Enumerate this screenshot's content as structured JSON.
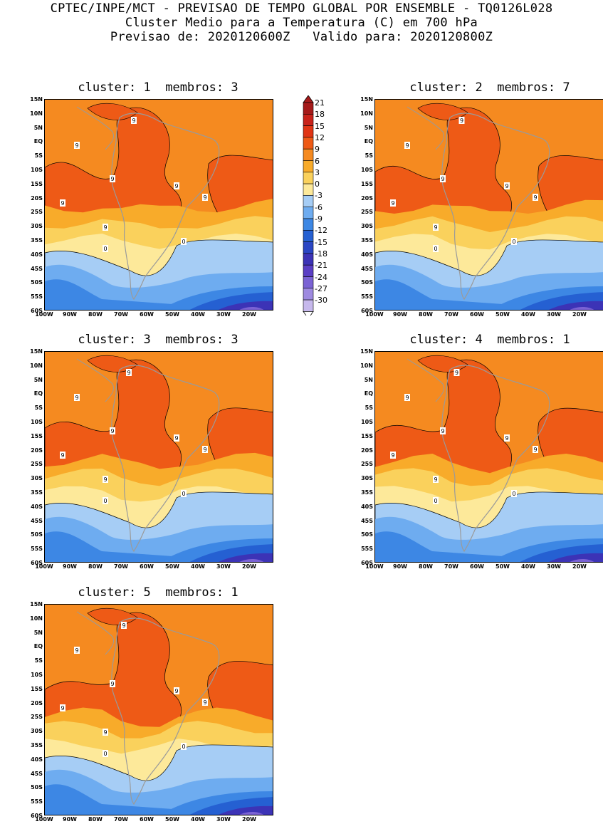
{
  "header": {
    "line1": "CPTEC/INPE/MCT - PREVISAO DE TEMPO GLOBAL POR ENSEMBLE - TQ0126L028",
    "line2": "Cluster Medio para a Temperatura (C) em 700 hPa",
    "line3": "Previsao de: 2020120600Z   Valido para: 2020120800Z"
  },
  "panels": [
    {
      "title": "cluster: 1  membros: 3"
    },
    {
      "title": "cluster: 2  membros: 7"
    },
    {
      "title": "cluster: 3  membros: 3"
    },
    {
      "title": "cluster: 4  membros: 1"
    },
    {
      "title": "cluster: 5  membros: 1"
    }
  ],
  "lat_labels": [
    "15N",
    "10N",
    "5N",
    "EQ",
    "5S",
    "10S",
    "15S",
    "20S",
    "25S",
    "30S",
    "35S",
    "40S",
    "45S",
    "50S",
    "55S",
    "60S"
  ],
  "lon_labels": [
    "100W",
    "90W",
    "80W",
    "70W",
    "60W",
    "50W",
    "40W",
    "30W",
    "20W"
  ],
  "colorbar": {
    "labels": [
      "21",
      "18",
      "15",
      "12",
      "9",
      "6",
      "3",
      "0",
      "-3",
      "-6",
      "-9",
      "-12",
      "-15",
      "-18",
      "-21",
      "-24",
      "-27",
      "-30"
    ],
    "colors": [
      "#a51a1a",
      "#c8221a",
      "#e03414",
      "#ee5a16",
      "#f58a20",
      "#f8ab2a",
      "#fad15c",
      "#fde99a",
      "#a6cdf5",
      "#6eacf0",
      "#3d87e4",
      "#2560d2",
      "#2a46c4",
      "#3c33b6",
      "#5a3ec4",
      "#7a62d4",
      "#9e8ae0",
      "#c6b8ec"
    ]
  },
  "contour_labels": {
    "warm": "9",
    "cold": "0"
  }
}
